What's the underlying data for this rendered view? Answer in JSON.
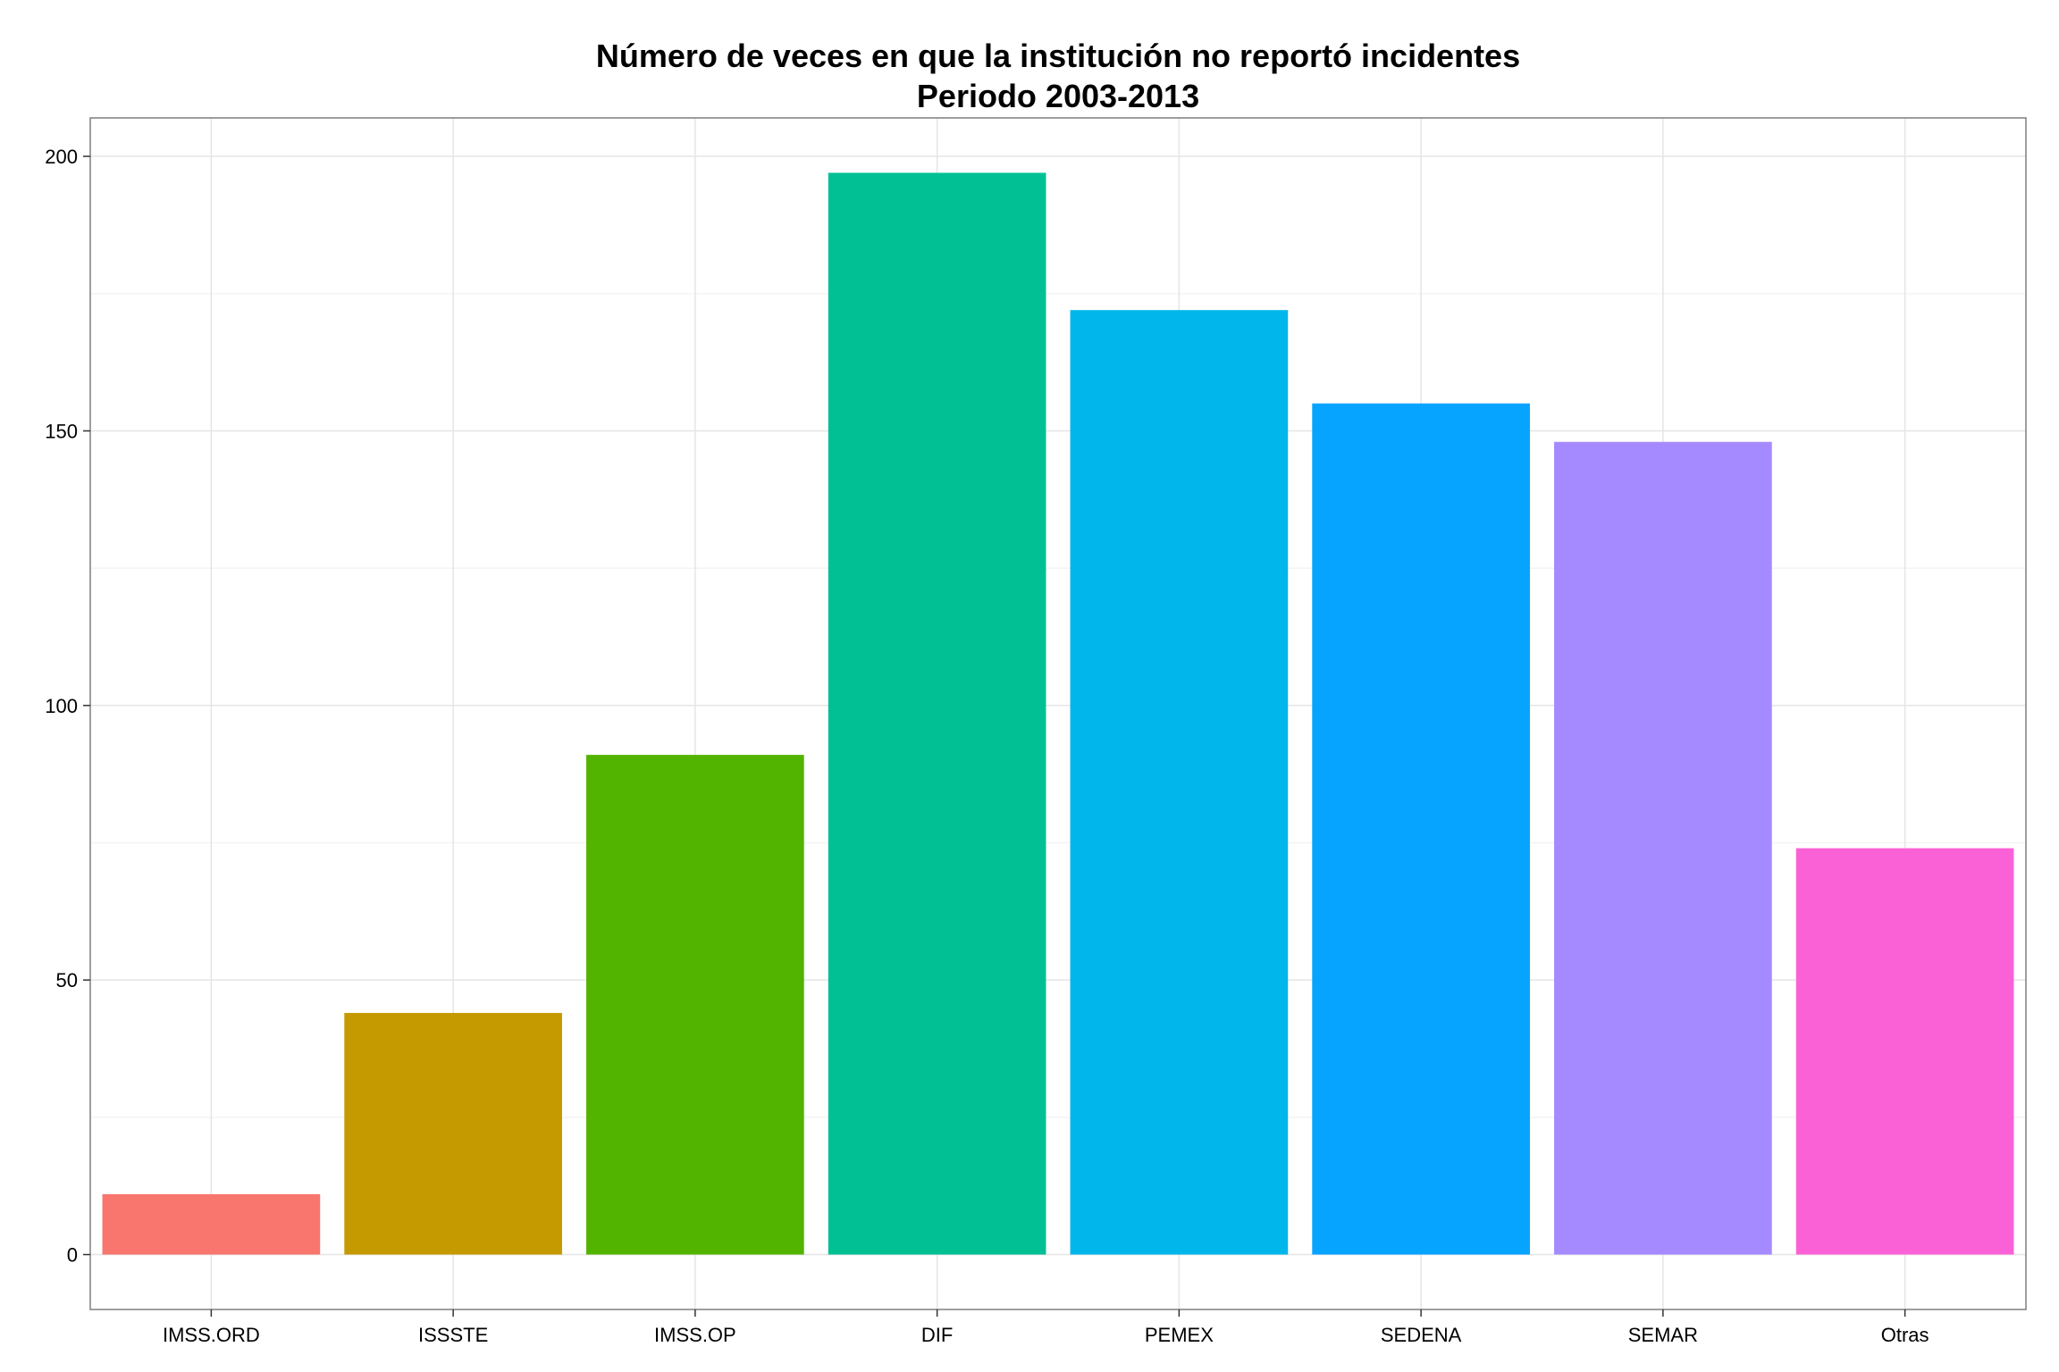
{
  "chart_data": {
    "type": "bar",
    "title": "Número de veces en que la institución no reportó incidentes",
    "subtitle": "Periodo 2003-2013",
    "xlabel": "",
    "ylabel": "",
    "categories": [
      "IMSS.ORD",
      "ISSSTE",
      "IMSS.OP",
      "DIF",
      "PEMEX",
      "SEDENA",
      "SEMAR",
      "Otras"
    ],
    "values": [
      11,
      44,
      91,
      197,
      172,
      155,
      148,
      74
    ],
    "colors": [
      "#F8766D",
      "#C49A00",
      "#53B400",
      "#00C094",
      "#00B6EB",
      "#06A4FF",
      "#A58AFF",
      "#FB61D7"
    ],
    "ylim": [
      -10,
      207
    ],
    "yticks": [
      0,
      50,
      100,
      150,
      200
    ],
    "ytick_labels": [
      "0",
      "50",
      "100",
      "150",
      "200"
    ],
    "grid": true,
    "legend": "none"
  }
}
